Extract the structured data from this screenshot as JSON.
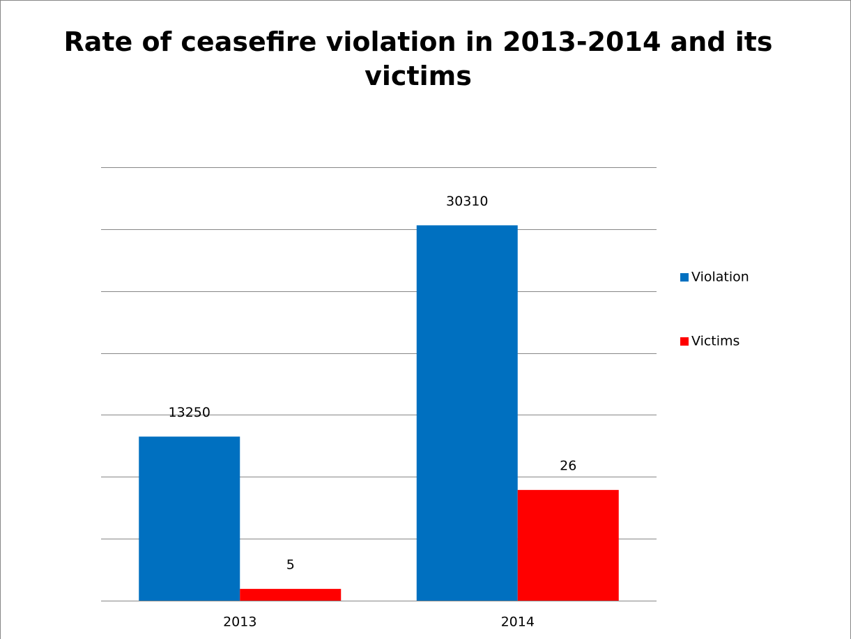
{
  "chart_data": {
    "type": "bar",
    "title": "Rate of ceasefire violation in 2013-2014 and its victims",
    "categories": [
      "2013",
      "2014"
    ],
    "series": [
      {
        "name": "Violation",
        "color": "#0070c0",
        "values": [
          13250,
          30310
        ]
      },
      {
        "name": "Victims",
        "color": "#ff0000",
        "values": [
          5,
          26
        ],
        "axis": "y2"
      }
    ],
    "ylim": [
      0,
      35000
    ],
    "yticks": [
      0,
      5000,
      10000,
      15000,
      20000,
      25000,
      30000,
      35000
    ],
    "y2lim": [
      2.5,
      94.5
    ],
    "grid": true,
    "legend": "right"
  }
}
